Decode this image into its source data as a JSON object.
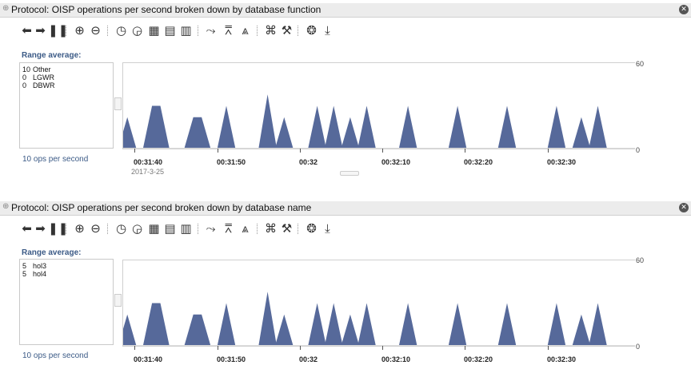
{
  "panels": [
    {
      "title": "Protocol: OISP operations per second broken down by database function",
      "range_label": "Range average:",
      "legend": [
        {
          "value": "10",
          "name": "Other"
        },
        {
          "value": "0",
          "name": "LGWR"
        },
        {
          "value": "0",
          "name": "DBWR"
        }
      ],
      "unit_label": "10 ops per second",
      "x_labels": [
        "00:31:40",
        "00:31:50",
        "00:32",
        "00:32:10",
        "00:32:20",
        "00:32:30"
      ],
      "date_label": "2017-3-25",
      "y_ticks": [
        "60",
        "0"
      ]
    },
    {
      "title": "Protocol: OISP operations per second broken down by database name",
      "range_label": "Range average:",
      "legend": [
        {
          "value": "5",
          "name": "hol3"
        },
        {
          "value": "5",
          "name": "hol4"
        }
      ],
      "unit_label": "10 ops per second",
      "x_labels": [
        "00:31:40",
        "00:31:50",
        "00:32",
        "00:32:10",
        "00:32:20",
        "00:32:30"
      ],
      "y_ticks": [
        "60",
        "0"
      ]
    }
  ],
  "toolbar_icons": [
    "play-back-icon",
    "play-forward-icon",
    "pause-icon",
    "zoom-in-icon",
    "zoom-out-icon",
    "back-history-icon",
    "forward-history-icon",
    "table-small-icon",
    "table-medium-icon",
    "table-large-icon",
    "line-chart-icon",
    "area-line-icon",
    "mountain-chart-icon",
    "fit-icon",
    "settings-icon",
    "globe-icon",
    "download-icon"
  ],
  "colors": {
    "series": "#56699a",
    "accent": "#3b5a86"
  },
  "chart_data": [
    {
      "type": "area",
      "ylim": [
        0,
        60
      ],
      "x_ticks": [
        "00:31:40",
        "00:31:50",
        "00:32",
        "00:32:10",
        "00:32:20",
        "00:32:30"
      ],
      "series": [
        {
          "name": "Other",
          "x": [
            "00:31:39",
            "00:31:41",
            "00:31:42",
            "00:31:43",
            "00:31:46",
            "00:31:47",
            "00:31:48",
            "00:31:49",
            "00:31:51",
            "00:31:53",
            "00:31:56",
            "00:31:57",
            "00:31:58",
            "00:31:59",
            "00:32:02",
            "00:32:03",
            "00:32:04",
            "00:32:05",
            "00:32:06",
            "00:32:07",
            "00:32:08",
            "00:32:10",
            "00:32:13",
            "00:32:16",
            "00:32:19",
            "00:32:22",
            "00:32:25",
            "00:32:31",
            "00:32:34",
            "00:32:36"
          ],
          "values": [
            22,
            0,
            30,
            30,
            0,
            22,
            22,
            0,
            30,
            0,
            38,
            0,
            22,
            0,
            30,
            0,
            30,
            0,
            22,
            0,
            30,
            0,
            30,
            0,
            30,
            0,
            30,
            30,
            22,
            30
          ]
        }
      ]
    },
    {
      "type": "area",
      "ylim": [
        0,
        60
      ],
      "x_ticks": [
        "00:31:40",
        "00:31:50",
        "00:32",
        "00:32:10",
        "00:32:20",
        "00:32:30"
      ],
      "series": [
        {
          "name": "hol3",
          "x": [
            "00:31:39",
            "00:31:41",
            "00:31:42",
            "00:31:43",
            "00:31:46",
            "00:31:47",
            "00:31:48",
            "00:31:49",
            "00:31:51",
            "00:31:53",
            "00:31:56",
            "00:31:57",
            "00:31:58",
            "00:31:59",
            "00:32:02",
            "00:32:03",
            "00:32:04",
            "00:32:05",
            "00:32:06",
            "00:32:07",
            "00:32:08",
            "00:32:10",
            "00:32:13",
            "00:32:16",
            "00:32:19",
            "00:32:22",
            "00:32:25",
            "00:32:31",
            "00:32:34",
            "00:32:36"
          ],
          "values": [
            22,
            0,
            30,
            30,
            0,
            22,
            22,
            0,
            30,
            0,
            38,
            0,
            22,
            0,
            30,
            0,
            30,
            0,
            22,
            0,
            30,
            0,
            30,
            0,
            30,
            0,
            30,
            30,
            22,
            30
          ]
        }
      ]
    }
  ]
}
